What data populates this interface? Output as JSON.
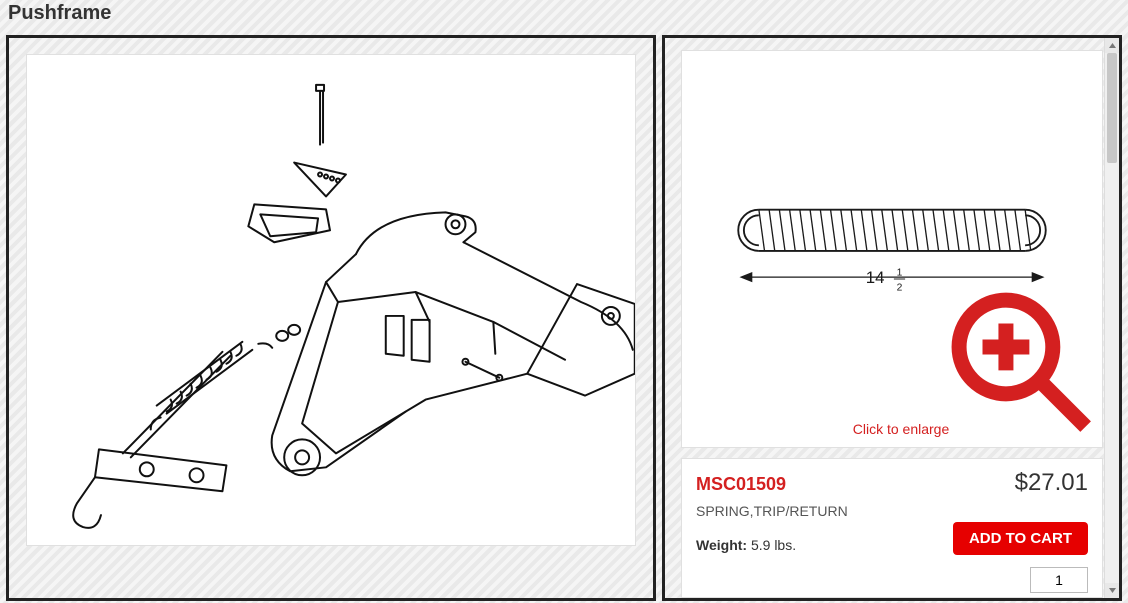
{
  "title": "Pushframe",
  "detail": {
    "enlarge_label": "Click to enlarge",
    "spring": {
      "label_int": "14",
      "label_num": "1",
      "label_den": "2",
      "body_length": 300,
      "hook_radius": 22,
      "coils": 26,
      "stroke": "#1a1a1a",
      "stroke_width": 2
    }
  },
  "product": {
    "sku": "MSC01509",
    "price": "$27.01",
    "description": "SPRING,TRIP/RETURN",
    "weight_label": "Weight:",
    "weight_value": "5.9 lbs.",
    "add_to_cart": "ADD TO CART",
    "qty": "1"
  },
  "colors": {
    "accent": "#d42020",
    "button": "#e60000",
    "border": "#222222"
  }
}
